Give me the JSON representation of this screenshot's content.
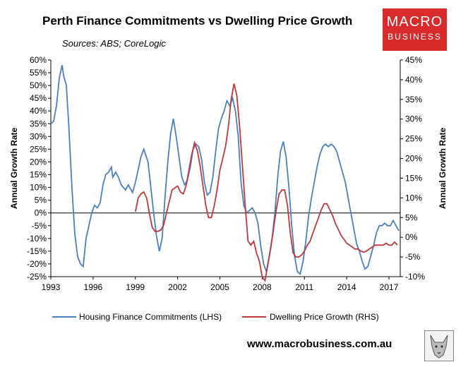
{
  "header": {
    "title": "Perth Finance Commitments vs Dwelling Price Growth",
    "subtitle": "Sources: ABS; CoreLogic"
  },
  "logo": {
    "line1": "MACRO",
    "line2": "BUSINESS"
  },
  "footer": {
    "website": "www.macrobusiness.com.au"
  },
  "colors": {
    "lhs_series": "#4a7fc1",
    "rhs_series": "#c0393b",
    "logo_bg": "#d92b2b"
  },
  "chart_data": {
    "type": "line",
    "title": "Perth Finance Commitments vs Dwelling Price Growth",
    "ylabel_left": "Annual Growth Rate",
    "ylabel_right": "Annual Growth Rate",
    "xticks": [
      "1993",
      "1996",
      "1999",
      "2002",
      "2005",
      "2008",
      "2011",
      "2014",
      "2017"
    ],
    "yticks_left": [
      "60%",
      "55%",
      "50%",
      "45%",
      "40%",
      "35%",
      "30%",
      "25%",
      "20%",
      "15%",
      "10%",
      "5%",
      "0%",
      "-5%",
      "-10%",
      "-15%",
      "-20%",
      "-25%"
    ],
    "yticks_right": [
      "45%",
      "40%",
      "35%",
      "30%",
      "25%",
      "20%",
      "15%",
      "10%",
      "5%",
      "0%",
      "-5%",
      "-10%"
    ],
    "ylim_left": [
      -25,
      60
    ],
    "ylim_right": [
      -10,
      45
    ],
    "xlim": [
      1993,
      2017.8
    ],
    "legend_position": "bottom",
    "series": [
      {
        "name": "Housing Finance Commitments (LHS)",
        "axis": "left",
        "points": [
          [
            1993.0,
            35
          ],
          [
            1993.2,
            36
          ],
          [
            1993.4,
            42
          ],
          [
            1993.6,
            53
          ],
          [
            1993.8,
            58
          ],
          [
            1993.9,
            54
          ],
          [
            1994.1,
            50
          ],
          [
            1994.3,
            32
          ],
          [
            1994.5,
            10
          ],
          [
            1994.7,
            -8
          ],
          [
            1994.9,
            -17
          ],
          [
            1995.1,
            -20
          ],
          [
            1995.3,
            -21
          ],
          [
            1995.5,
            -10
          ],
          [
            1995.7,
            -5
          ],
          [
            1995.9,
            0
          ],
          [
            1996.1,
            3
          ],
          [
            1996.3,
            2
          ],
          [
            1996.5,
            4
          ],
          [
            1996.7,
            11
          ],
          [
            1996.9,
            15
          ],
          [
            1997.1,
            16
          ],
          [
            1997.3,
            18
          ],
          [
            1997.4,
            14
          ],
          [
            1997.6,
            16
          ],
          [
            1997.8,
            14
          ],
          [
            1998.0,
            11
          ],
          [
            1998.3,
            9
          ],
          [
            1998.5,
            11
          ],
          [
            1998.8,
            8
          ],
          [
            1999.0,
            12
          ],
          [
            1999.2,
            17
          ],
          [
            1999.4,
            22
          ],
          [
            1999.6,
            25
          ],
          [
            1999.9,
            20
          ],
          [
            2000.1,
            10
          ],
          [
            2000.3,
            0
          ],
          [
            2000.5,
            -9
          ],
          [
            2000.7,
            -15
          ],
          [
            2000.9,
            -10
          ],
          [
            2001.1,
            6
          ],
          [
            2001.3,
            20
          ],
          [
            2001.5,
            31
          ],
          [
            2001.7,
            37
          ],
          [
            2001.9,
            30
          ],
          [
            2002.1,
            22
          ],
          [
            2002.3,
            14
          ],
          [
            2002.5,
            11
          ],
          [
            2002.7,
            13
          ],
          [
            2002.9,
            18
          ],
          [
            2003.1,
            25
          ],
          [
            2003.3,
            27
          ],
          [
            2003.5,
            26
          ],
          [
            2003.7,
            21
          ],
          [
            2003.9,
            12
          ],
          [
            2004.1,
            7
          ],
          [
            2004.3,
            8
          ],
          [
            2004.5,
            14
          ],
          [
            2004.7,
            24
          ],
          [
            2004.9,
            33
          ],
          [
            2005.1,
            37
          ],
          [
            2005.3,
            40
          ],
          [
            2005.5,
            44
          ],
          [
            2005.7,
            42
          ],
          [
            2005.9,
            45
          ],
          [
            2006.1,
            40
          ],
          [
            2006.3,
            30
          ],
          [
            2006.5,
            12
          ],
          [
            2006.7,
            3
          ],
          [
            2006.9,
            0
          ],
          [
            2007.1,
            1
          ],
          [
            2007.3,
            2
          ],
          [
            2007.5,
            0
          ],
          [
            2007.7,
            -4
          ],
          [
            2007.9,
            -13
          ],
          [
            2008.1,
            -20
          ],
          [
            2008.3,
            -23
          ],
          [
            2008.5,
            -17
          ],
          [
            2008.7,
            -10
          ],
          [
            2008.9,
            0
          ],
          [
            2009.1,
            14
          ],
          [
            2009.3,
            24
          ],
          [
            2009.5,
            28
          ],
          [
            2009.7,
            22
          ],
          [
            2009.9,
            10
          ],
          [
            2010.1,
            -5
          ],
          [
            2010.3,
            -17
          ],
          [
            2010.5,
            -23
          ],
          [
            2010.7,
            -24
          ],
          [
            2010.9,
            -19
          ],
          [
            2011.1,
            -11
          ],
          [
            2011.3,
            -1
          ],
          [
            2011.5,
            6
          ],
          [
            2011.7,
            12
          ],
          [
            2011.9,
            18
          ],
          [
            2012.1,
            23
          ],
          [
            2012.3,
            26
          ],
          [
            2012.5,
            27
          ],
          [
            2012.7,
            26
          ],
          [
            2012.9,
            27
          ],
          [
            2013.1,
            26
          ],
          [
            2013.3,
            24
          ],
          [
            2013.5,
            20
          ],
          [
            2013.7,
            16
          ],
          [
            2013.9,
            12
          ],
          [
            2014.1,
            6
          ],
          [
            2014.3,
            0
          ],
          [
            2014.5,
            -6
          ],
          [
            2014.7,
            -12
          ],
          [
            2014.9,
            -15
          ],
          [
            2015.1,
            -19
          ],
          [
            2015.3,
            -22
          ],
          [
            2015.5,
            -21
          ],
          [
            2015.7,
            -17
          ],
          [
            2015.9,
            -13
          ],
          [
            2016.1,
            -8
          ],
          [
            2016.3,
            -5
          ],
          [
            2016.5,
            -5
          ],
          [
            2016.7,
            -4
          ],
          [
            2016.9,
            -5
          ],
          [
            2017.1,
            -5
          ],
          [
            2017.3,
            -3
          ],
          [
            2017.5,
            -5
          ],
          [
            2017.7,
            -7
          ]
        ]
      },
      {
        "name": "Dwelling Price Growth (RHS)",
        "axis": "right",
        "points": [
          [
            1999.0,
            6.5
          ],
          [
            1999.2,
            10
          ],
          [
            1999.4,
            11
          ],
          [
            1999.6,
            11.5
          ],
          [
            1999.8,
            10
          ],
          [
            2000.0,
            6
          ],
          [
            2000.2,
            2.5
          ],
          [
            2000.4,
            1.5
          ],
          [
            2000.6,
            1.5
          ],
          [
            2000.8,
            1.8
          ],
          [
            2001.0,
            3
          ],
          [
            2001.2,
            6
          ],
          [
            2001.4,
            9
          ],
          [
            2001.6,
            12
          ],
          [
            2001.8,
            12.5
          ],
          [
            2002.0,
            13
          ],
          [
            2002.2,
            11.5
          ],
          [
            2002.4,
            11
          ],
          [
            2002.6,
            13
          ],
          [
            2002.8,
            17
          ],
          [
            2003.0,
            21
          ],
          [
            2003.2,
            24
          ],
          [
            2003.4,
            22
          ],
          [
            2003.6,
            18
          ],
          [
            2003.8,
            13
          ],
          [
            2004.0,
            8
          ],
          [
            2004.2,
            5
          ],
          [
            2004.4,
            5
          ],
          [
            2004.6,
            8
          ],
          [
            2004.8,
            12
          ],
          [
            2005.0,
            17
          ],
          [
            2005.2,
            20
          ],
          [
            2005.4,
            23
          ],
          [
            2005.6,
            28
          ],
          [
            2005.8,
            35
          ],
          [
            2006.0,
            39
          ],
          [
            2006.2,
            36
          ],
          [
            2006.4,
            28
          ],
          [
            2006.6,
            18
          ],
          [
            2006.8,
            8
          ],
          [
            2007.0,
            -1
          ],
          [
            2007.2,
            -2
          ],
          [
            2007.4,
            -1
          ],
          [
            2007.6,
            -4
          ],
          [
            2007.8,
            -6
          ],
          [
            2008.0,
            -10
          ],
          [
            2008.2,
            -11
          ],
          [
            2008.4,
            -7
          ],
          [
            2008.6,
            -3
          ],
          [
            2008.8,
            2
          ],
          [
            2009.0,
            7
          ],
          [
            2009.2,
            11
          ],
          [
            2009.4,
            12
          ],
          [
            2009.6,
            12
          ],
          [
            2009.8,
            8
          ],
          [
            2010.0,
            1
          ],
          [
            2010.2,
            -4
          ],
          [
            2010.4,
            -5
          ],
          [
            2010.6,
            -5
          ],
          [
            2010.8,
            -4.5
          ],
          [
            2011.0,
            -3.5
          ],
          [
            2011.2,
            -2
          ],
          [
            2011.4,
            -1
          ],
          [
            2011.6,
            1
          ],
          [
            2011.8,
            3
          ],
          [
            2012.0,
            5
          ],
          [
            2012.2,
            7
          ],
          [
            2012.4,
            8.5
          ],
          [
            2012.6,
            8.5
          ],
          [
            2012.8,
            7
          ],
          [
            2013.0,
            5.5
          ],
          [
            2013.2,
            3.5
          ],
          [
            2013.4,
            2
          ],
          [
            2013.6,
            0.5
          ],
          [
            2013.8,
            -0.5
          ],
          [
            2014.0,
            -1.5
          ],
          [
            2014.2,
            -2
          ],
          [
            2014.4,
            -2.5
          ],
          [
            2014.6,
            -3
          ],
          [
            2014.8,
            -3
          ],
          [
            2015.0,
            -3.5
          ],
          [
            2015.2,
            -3.8
          ],
          [
            2015.4,
            -3.5
          ],
          [
            2015.6,
            -3
          ],
          [
            2015.8,
            -2.5
          ],
          [
            2016.0,
            -2
          ],
          [
            2016.2,
            -2
          ],
          [
            2016.4,
            -2
          ],
          [
            2016.6,
            -2
          ],
          [
            2016.8,
            -1.5
          ],
          [
            2017.0,
            -2
          ],
          [
            2017.2,
            -2
          ],
          [
            2017.4,
            -1.2
          ],
          [
            2017.6,
            -2
          ]
        ]
      }
    ]
  }
}
